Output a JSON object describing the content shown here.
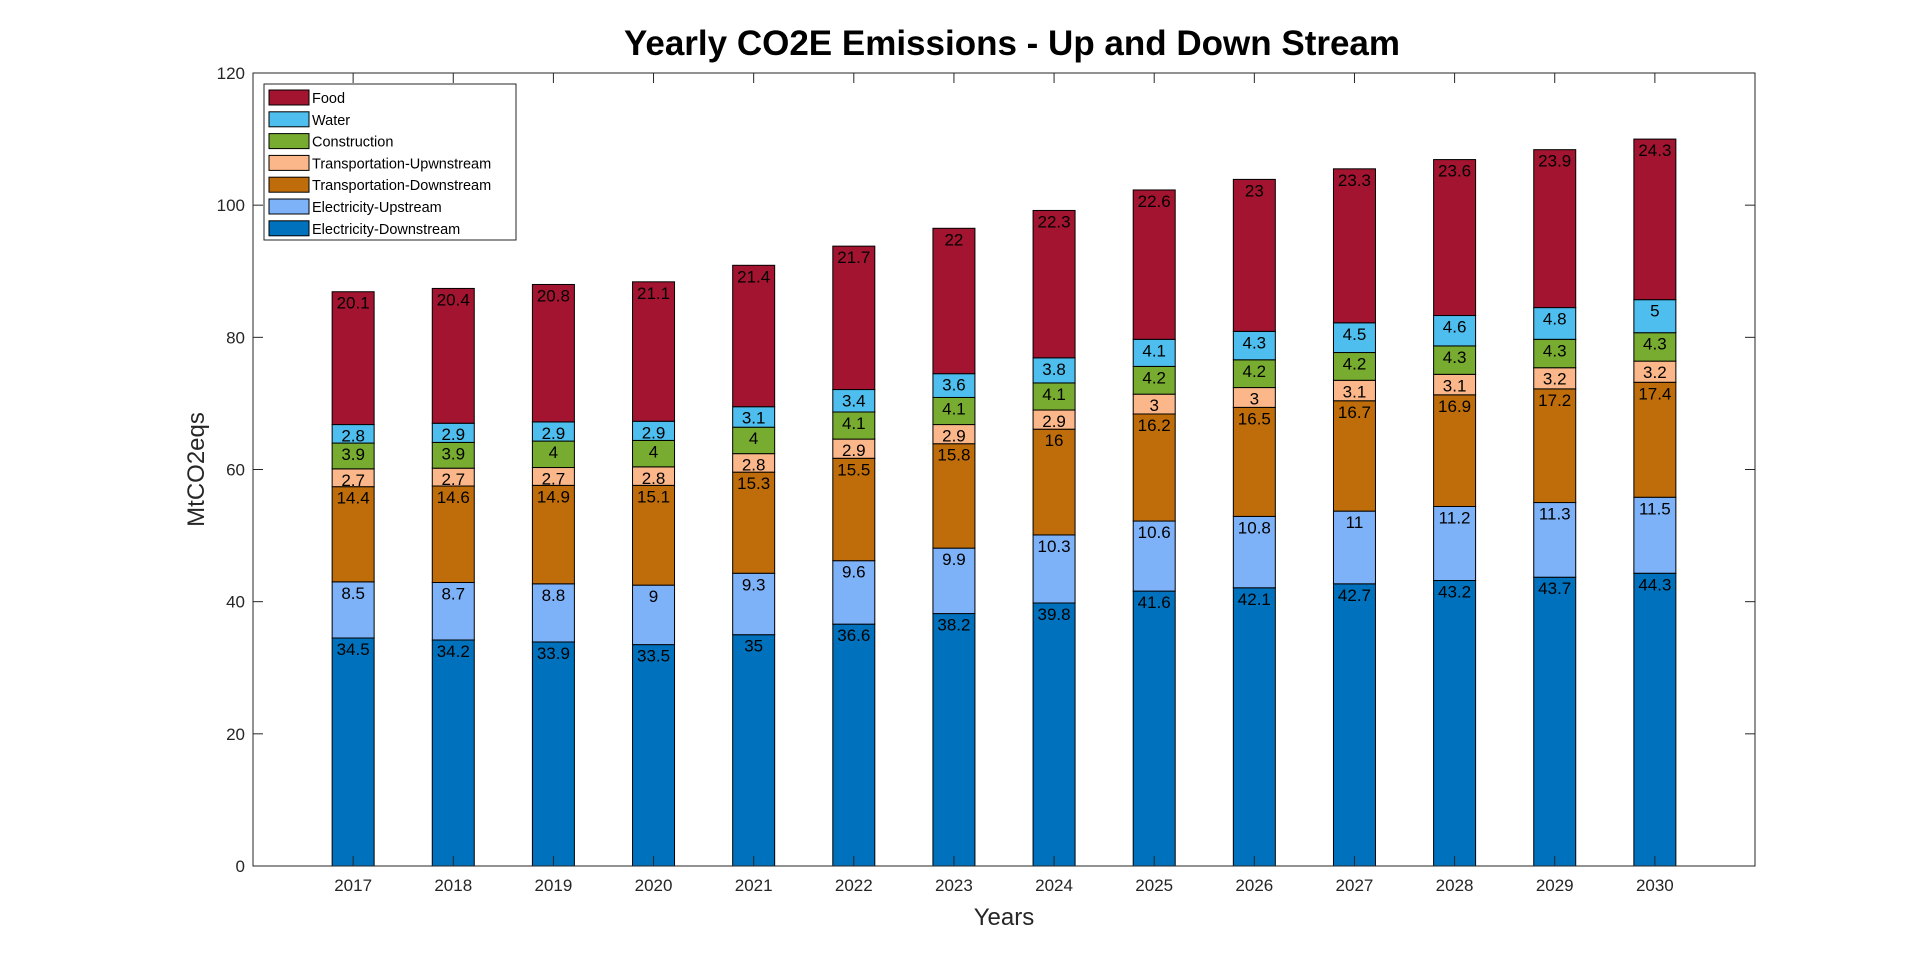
{
  "chart_data": {
    "type": "bar",
    "stacked": true,
    "title": "Yearly CO2E Emissions - Up and Down Stream",
    "xlabel": "Years",
    "ylabel": "MtCO2eqs",
    "ylim": [
      0,
      120
    ],
    "yticks": [
      0,
      20,
      40,
      60,
      80,
      100,
      120
    ],
    "grid": false,
    "legend_position": "top-left",
    "categories": [
      "2017",
      "2018",
      "2019",
      "2020",
      "2021",
      "2022",
      "2023",
      "2024",
      "2025",
      "2026",
      "2027",
      "2028",
      "2029",
      "2030"
    ],
    "series": [
      {
        "name": "Electricity-Downstream",
        "color": "#0072BD",
        "values": [
          34.5,
          34.2,
          33.9,
          33.5,
          35,
          36.6,
          38.2,
          39.8,
          41.6,
          42.1,
          42.7,
          43.2,
          43.7,
          44.3
        ]
      },
      {
        "name": "Electricity-Upstream",
        "color": "#7EB2F8",
        "values": [
          8.5,
          8.7,
          8.8,
          9,
          9.3,
          9.6,
          9.9,
          10.3,
          10.6,
          10.8,
          11,
          11.2,
          11.3,
          11.5
        ]
      },
      {
        "name": "Transportation-Downstream",
        "color": "#BF6D0A",
        "values": [
          14.4,
          14.6,
          14.9,
          15.1,
          15.3,
          15.5,
          15.8,
          16,
          16.2,
          16.5,
          16.7,
          16.9,
          17.2,
          17.4
        ]
      },
      {
        "name": "Transportation-Upwnstream",
        "color": "#FBB789",
        "values": [
          2.7,
          2.7,
          2.7,
          2.8,
          2.8,
          2.9,
          2.9,
          2.9,
          3,
          3,
          3.1,
          3.1,
          3.2,
          3.2
        ]
      },
      {
        "name": "Construction",
        "color": "#77AC30",
        "values": [
          3.9,
          3.9,
          4,
          4,
          4,
          4.1,
          4.1,
          4.1,
          4.2,
          4.2,
          4.2,
          4.3,
          4.3,
          4.3
        ]
      },
      {
        "name": "Water",
        "color": "#4DBEEE",
        "values": [
          2.8,
          2.9,
          2.9,
          2.9,
          3.1,
          3.4,
          3.6,
          3.8,
          4.1,
          4.3,
          4.5,
          4.6,
          4.8,
          5
        ]
      },
      {
        "name": "Food",
        "color": "#A2142F",
        "values": [
          20.1,
          20.4,
          20.8,
          21.1,
          21.4,
          21.7,
          22,
          22.3,
          22.6,
          23,
          23.3,
          23.6,
          23.9,
          24.3
        ]
      }
    ],
    "legend_order": [
      "Food",
      "Water",
      "Construction",
      "Transportation-Upwnstream",
      "Transportation-Downstream",
      "Electricity-Upstream",
      "Electricity-Downstream"
    ]
  }
}
